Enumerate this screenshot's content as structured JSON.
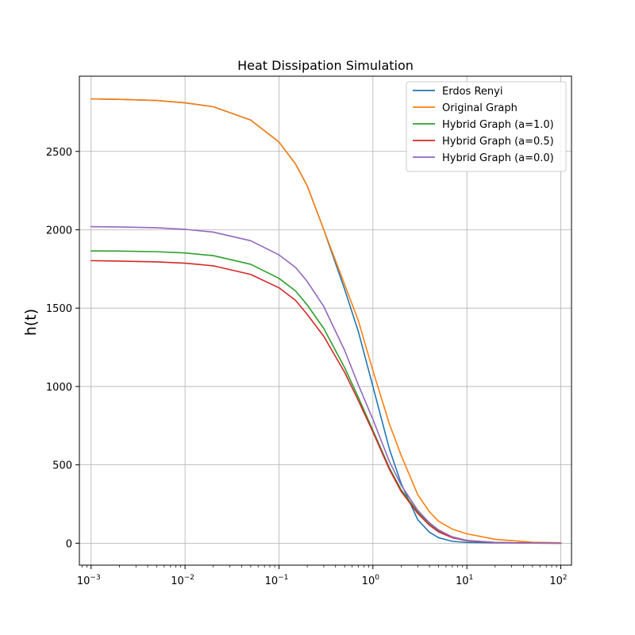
{
  "chart_data": {
    "type": "line",
    "title": "Heat Dissipation Simulation",
    "xlabel": "",
    "ylabel": "h(t)",
    "xscale": "log",
    "xlim": [
      0.00075,
      130
    ],
    "ylim": [
      -140,
      2980
    ],
    "grid": true,
    "legend_position": "top-right",
    "x_ticks": [
      {
        "value": 0.001,
        "base": "10",
        "exp": "−3"
      },
      {
        "value": 0.01,
        "base": "10",
        "exp": "−2"
      },
      {
        "value": 0.1,
        "base": "10",
        "exp": "−1"
      },
      {
        "value": 1,
        "base": "10",
        "exp": "0"
      },
      {
        "value": 10,
        "base": "10",
        "exp": "1"
      },
      {
        "value": 100,
        "base": "10",
        "exp": "2"
      }
    ],
    "y_ticks": [
      {
        "value": 0,
        "label": "0"
      },
      {
        "value": 500,
        "label": "500"
      },
      {
        "value": 1000,
        "label": "1000"
      },
      {
        "value": 1500,
        "label": "1500"
      },
      {
        "value": 2000,
        "label": "2000"
      },
      {
        "value": 2500,
        "label": "2500"
      }
    ],
    "x": [
      0.001,
      0.002,
      0.005,
      0.01,
      0.02,
      0.05,
      0.1,
      0.15,
      0.2,
      0.3,
      0.5,
      0.7,
      1,
      1.5,
      2,
      3,
      4,
      5,
      7,
      10,
      20,
      50,
      100
    ],
    "series": [
      {
        "name": "Erdos Renyi",
        "color": "#1f77b4",
        "values": [
          2835,
          2832,
          2825,
          2810,
          2785,
          2700,
          2560,
          2420,
          2280,
          2000,
          1620,
          1350,
          1000,
          600,
          380,
          150,
          70,
          35,
          12,
          5,
          2,
          1,
          0
        ]
      },
      {
        "name": "Original Graph",
        "color": "#ff7f0e",
        "values": [
          2835,
          2832,
          2825,
          2810,
          2785,
          2700,
          2560,
          2420,
          2280,
          2000,
          1650,
          1420,
          1100,
          760,
          560,
          310,
          200,
          140,
          90,
          60,
          25,
          6,
          3
        ]
      },
      {
        "name": "Hybrid Graph (a=1.0)",
        "color": "#2ca02c",
        "values": [
          1865,
          1864,
          1860,
          1852,
          1835,
          1780,
          1690,
          1610,
          1520,
          1370,
          1120,
          930,
          720,
          480,
          340,
          200,
          125,
          80,
          40,
          18,
          5,
          1,
          0
        ]
      },
      {
        "name": "Hybrid Graph (a=0.5)",
        "color": "#d62728",
        "values": [
          1803,
          1800,
          1795,
          1787,
          1770,
          1715,
          1630,
          1550,
          1460,
          1320,
          1090,
          910,
          710,
          470,
          330,
          190,
          115,
          72,
          35,
          15,
          4,
          1,
          0
        ]
      },
      {
        "name": "Hybrid Graph (a=0.0)",
        "color": "#9467bd",
        "values": [
          2020,
          2018,
          2013,
          2003,
          1985,
          1930,
          1840,
          1760,
          1670,
          1510,
          1230,
          1010,
          790,
          520,
          370,
          210,
          130,
          85,
          40,
          17,
          5,
          1,
          0
        ]
      }
    ]
  }
}
